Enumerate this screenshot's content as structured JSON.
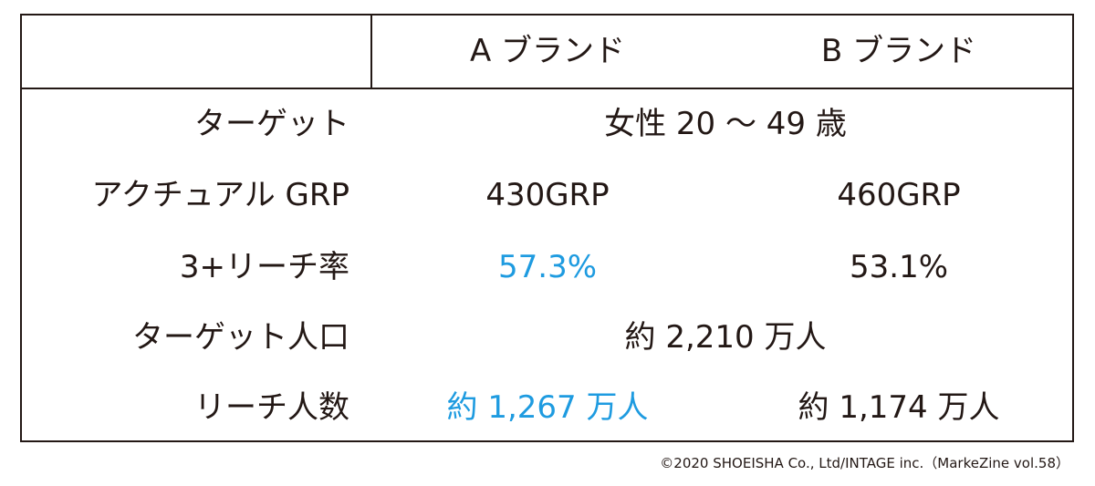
{
  "table": {
    "columns": [
      "A ブランド",
      "B ブランド"
    ],
    "rows": [
      {
        "label": "ターゲット",
        "values": [
          "女性 20 〜 49 歳"
        ]
      },
      {
        "label": "アクチュアル GRP",
        "values": [
          "430GRP",
          "460GRP"
        ]
      },
      {
        "label": "3+リーチ率",
        "values": [
          "57.3%",
          "53.1%"
        ]
      },
      {
        "label": "ターゲット人口",
        "values": [
          "約 2,210 万人"
        ]
      },
      {
        "label": "リーチ人数",
        "values": [
          "約 1,267 万人",
          "約 1,174 万人"
        ]
      }
    ]
  },
  "credit": "©2020 SHOEISHA Co., Ltd/INTAGE inc.（MarkeZine vol.58）"
}
